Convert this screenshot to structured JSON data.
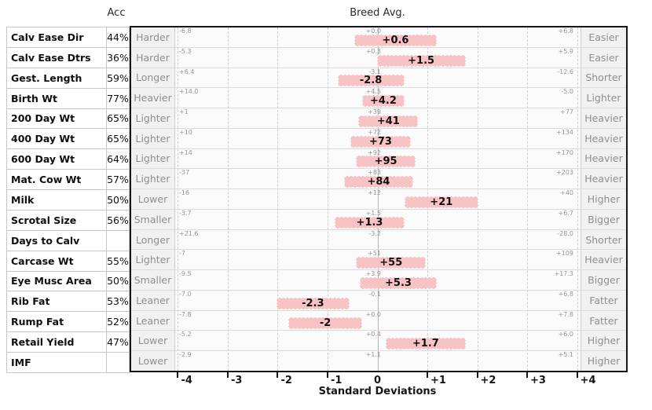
{
  "header": {
    "acc_label": "Acc",
    "breed_avg_label": "Breed Avg."
  },
  "colors": {
    "bar_fill": "#f8c3c5",
    "label_column_bg": "#f1f1f1",
    "plot_bg": "#fbfbfb",
    "gridline": "#cfcfcf",
    "center_line": "#b2b2b2",
    "box_border": "#161616",
    "muted_text": "#8f8f8f"
  },
  "chart_data": {
    "type": "bar",
    "orientation": "horizontal-range",
    "title": "Breed Avg.",
    "xlabel": "Standard Deviations",
    "xlim": [
      -4.07,
      4.07
    ],
    "x_ticks": [
      {
        "sd": -4,
        "label": "-4",
        "tick": true
      },
      {
        "sd": -3,
        "label": "-3",
        "tick": true
      },
      {
        "sd": -2,
        "label": "-2",
        "tick": true
      },
      {
        "sd": -1,
        "label": "-1",
        "tick": true
      },
      {
        "sd": 0,
        "label": "0",
        "tick": false
      },
      {
        "sd": 1,
        "label": "+1",
        "tick": true
      },
      {
        "sd": 2,
        "label": "+2",
        "tick": true
      },
      {
        "sd": 3,
        "label": "+3",
        "tick": true
      },
      {
        "sd": 4,
        "label": "+4",
        "tick": true
      }
    ],
    "gridlines_sd": [
      -4,
      -3,
      -2,
      -1,
      0,
      1,
      2,
      3,
      4
    ],
    "rows": [
      {
        "trait": "Calv Ease Dir",
        "acc": "44%",
        "left_label": "Harder",
        "left_value": "-6.8",
        "center_value": "+0.0",
        "bar": {
          "from": -0.47,
          "to": 1.18,
          "label": "+0.6"
        },
        "right_value": "+6.8",
        "right_label": "Easier"
      },
      {
        "trait": "Calv Ease Dtrs",
        "acc": "36%",
        "left_label": "Harder",
        "left_value": "-5.3",
        "center_value": "+0.3",
        "bar": {
          "from": -0.02,
          "to": 1.76,
          "label": "+1.5"
        },
        "right_value": "+5.9",
        "right_label": "Easier"
      },
      {
        "trait": "Gest. Length",
        "acc": "59%",
        "left_label": "Longer",
        "left_value": "+6.4",
        "center_value": "-3.1",
        "bar": {
          "from": -0.81,
          "to": 0.53,
          "label": "-2.8"
        },
        "right_value": "-12.6",
        "right_label": "Shorter"
      },
      {
        "trait": "Birth Wt",
        "acc": "77%",
        "left_label": "Heavier",
        "left_value": "+14.0",
        "center_value": "+4.5",
        "bar": {
          "from": -0.31,
          "to": 0.53,
          "label": "+4.2"
        },
        "right_value": "-5.0",
        "right_label": "Lighter"
      },
      {
        "trait": "200 Day Wt",
        "acc": "65%",
        "left_label": "Lighter",
        "left_value": "+1",
        "center_value": "+39",
        "bar": {
          "from": -0.39,
          "to": 0.81,
          "label": "+41"
        },
        "right_value": "+77",
        "right_label": "Heavier"
      },
      {
        "trait": "400 Day Wt",
        "acc": "65%",
        "left_label": "Lighter",
        "left_value": "+10",
        "center_value": "+72",
        "bar": {
          "from": -0.55,
          "to": 0.66,
          "label": "+73"
        },
        "right_value": "+134",
        "right_label": "Heavier"
      },
      {
        "trait": "600 Day Wt",
        "acc": "64%",
        "left_label": "Lighter",
        "left_value": "+14",
        "center_value": "+92",
        "bar": {
          "from": -0.44,
          "to": 0.76,
          "label": "+95"
        },
        "right_value": "+170",
        "right_label": "Heavier"
      },
      {
        "trait": "Mat. Cow Wt",
        "acc": "57%",
        "left_label": "Lighter",
        "left_value": "-37",
        "center_value": "+83",
        "bar": {
          "from": -0.68,
          "to": 0.71,
          "label": "+84"
        },
        "right_value": "+203",
        "right_label": "Heavier"
      },
      {
        "trait": "Milk",
        "acc": "50%",
        "left_label": "Lower",
        "left_value": "-16",
        "center_value": "+12",
        "bar": {
          "from": 0.53,
          "to": 2.02,
          "label": "+21"
        },
        "right_value": "+40",
        "right_label": "Higher"
      },
      {
        "trait": "Scrotal Size",
        "acc": "56%",
        "left_label": "Smaller",
        "left_value": "-3.7",
        "center_value": "+1.5",
        "bar": {
          "from": -0.87,
          "to": 0.54,
          "label": "+1.3"
        },
        "right_value": "+6.7",
        "right_label": "Bigger"
      },
      {
        "trait": "Days to Calv",
        "acc": "",
        "left_label": "Longer",
        "left_value": "+21.6",
        "center_value": "-3.2",
        "bar": null,
        "right_value": "-28.0",
        "right_label": "Shorter"
      },
      {
        "trait": "Carcase Wt",
        "acc": "55%",
        "left_label": "Lighter",
        "left_value": "-7",
        "center_value": "+51",
        "bar": {
          "from": -0.44,
          "to": 0.97,
          "label": "+55"
        },
        "right_value": "+109",
        "right_label": "Heavier"
      },
      {
        "trait": "Eye Musc Area",
        "acc": "50%",
        "left_label": "Smaller",
        "left_value": "-9.5",
        "center_value": "+3.9",
        "bar": {
          "from": -0.36,
          "to": 1.18,
          "label": "+5.3"
        },
        "right_value": "+17.3",
        "right_label": "Bigger"
      },
      {
        "trait": "Rib Fat",
        "acc": "53%",
        "left_label": "Leaner",
        "left_value": "-7.0",
        "center_value": "-0.1",
        "bar": {
          "from": -2.04,
          "to": -0.57,
          "label": "-2.3"
        },
        "right_value": "+6.8",
        "right_label": "Fatter"
      },
      {
        "trait": "Rump Fat",
        "acc": "52%",
        "left_label": "Leaner",
        "left_value": "-7.8",
        "center_value": "+0.0",
        "bar": {
          "from": -1.8,
          "to": -0.31,
          "label": "-2"
        },
        "right_value": "+7.8",
        "right_label": "Fatter"
      },
      {
        "trait": "Retail Yield",
        "acc": "47%",
        "left_label": "Lower",
        "left_value": "-5.2",
        "center_value": "+0.4",
        "bar": {
          "from": 0.16,
          "to": 1.76,
          "label": "+1.7"
        },
        "right_value": "+6.0",
        "right_label": "Higher"
      },
      {
        "trait": "IMF",
        "acc": "",
        "left_label": "Lower",
        "left_value": "-2.9",
        "center_value": "+1.1",
        "bar": null,
        "right_value": "+5.1",
        "right_label": "Higher"
      }
    ]
  }
}
